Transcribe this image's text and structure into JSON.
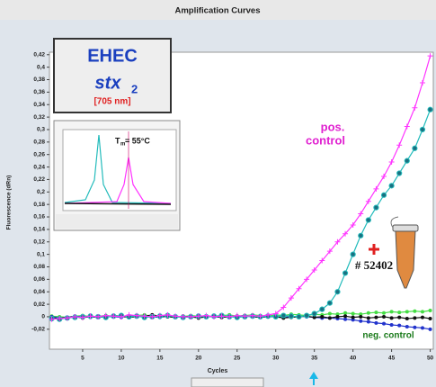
{
  "chart_data": {
    "type": "line",
    "title": "Amplification Curves",
    "x_label": "Cycles",
    "y_label": "Fluorescence (dRn)",
    "x": [
      1,
      2,
      3,
      4,
      5,
      6,
      7,
      8,
      9,
      10,
      11,
      12,
      13,
      14,
      15,
      16,
      17,
      18,
      19,
      20,
      21,
      22,
      23,
      24,
      25,
      26,
      27,
      28,
      29,
      30,
      31,
      32,
      33,
      34,
      35,
      36,
      37,
      38,
      39,
      40,
      41,
      42,
      43,
      44,
      45,
      46,
      47,
      48,
      49,
      50
    ],
    "xlim": [
      0.7,
      50.4
    ],
    "xticks": [
      5,
      10,
      15,
      20,
      25,
      30,
      35,
      40,
      45,
      50
    ],
    "ylim": [
      -0.052,
      0.424
    ],
    "yticks": [
      {
        "value": -0.02,
        "label": "-0,02"
      },
      {
        "value": 0,
        "label": "0"
      },
      {
        "value": 0.02,
        "label": "0,02"
      },
      {
        "value": 0.04,
        "label": "0,04"
      },
      {
        "value": 0.06,
        "label": "0,06"
      },
      {
        "value": 0.08,
        "label": "0,08"
      },
      {
        "value": 0.1,
        "label": "0,1"
      },
      {
        "value": 0.12,
        "label": "0,12"
      },
      {
        "value": 0.14,
        "label": "0,14"
      },
      {
        "value": 0.16,
        "label": "0,16"
      },
      {
        "value": 0.18,
        "label": "0,18"
      },
      {
        "value": 0.2,
        "label": "0,2"
      },
      {
        "value": 0.22,
        "label": "0,22"
      },
      {
        "value": 0.24,
        "label": "0,24"
      },
      {
        "value": 0.26,
        "label": "0,26"
      },
      {
        "value": 0.28,
        "label": "0,28"
      },
      {
        "value": 0.3,
        "label": "0,3"
      },
      {
        "value": 0.32,
        "label": "0,32"
      },
      {
        "value": 0.34,
        "label": "0,34"
      },
      {
        "value": 0.36,
        "label": "0,36"
      },
      {
        "value": 0.38,
        "label": "0,38"
      },
      {
        "value": 0.4,
        "label": "0,4"
      },
      {
        "value": 0.42,
        "label": "0,42"
      }
    ],
    "series": [
      {
        "color": "#ff33ff",
        "marker": "plus",
        "values": [
          -0.004,
          -0.003,
          -0.002,
          0,
          -0.001,
          0.001,
          0,
          0.002,
          0.001,
          0,
          0.003,
          0.002,
          0.001,
          0,
          0.002,
          0.003,
          0.001,
          0,
          0,
          0.001,
          0.002,
          0,
          0.001,
          0,
          0.002,
          0.001,
          0.002,
          0.001,
          0.003,
          0.005,
          0.015,
          0.03,
          0.045,
          0.06,
          0.075,
          0.09,
          0.105,
          0.12,
          0.133,
          0.147,
          0.165,
          0.185,
          0.205,
          0.225,
          0.248,
          0.275,
          0.305,
          0.335,
          0.375,
          0.418
        ]
      },
      {
        "color": "#22bbbb",
        "marker": "circle",
        "values": [
          -0.003,
          -0.004,
          -0.002,
          -0.001,
          0,
          0.001,
          0,
          -0.001,
          0.001,
          0.002,
          0,
          0.001,
          -0.001,
          0,
          0.001,
          0.002,
          0,
          -0.001,
          0,
          0.001,
          0,
          0.001,
          0.002,
          0,
          -0.001,
          0,
          0.001,
          0,
          0.001,
          0,
          0.002,
          0.001,
          0,
          0.002,
          0.005,
          0.012,
          0.022,
          0.04,
          0.07,
          0.1,
          0.13,
          0.155,
          0.175,
          0.195,
          0.21,
          0.23,
          0.25,
          0.27,
          0.3,
          0.332
        ]
      },
      {
        "color": "#111111",
        "marker": "dot",
        "values": [
          -0.002,
          -0.003,
          -0.001,
          0,
          -0.002,
          0.001,
          -0.001,
          0,
          0.002,
          0.001,
          -0.001,
          0,
          0.001,
          0.003,
          0.001,
          0,
          -0.001,
          0.001,
          0,
          -0.002,
          0,
          0.001,
          -0.001,
          0,
          0.001,
          0.002,
          0,
          -0.001,
          0.001,
          0,
          -0.002,
          -0.001,
          0,
          0.001,
          -0.001,
          0,
          -0.002,
          0,
          0.001,
          -0.001,
          0,
          -0.002,
          -0.001,
          0,
          -0.002,
          -0.001,
          -0.003,
          -0.002,
          -0.001,
          -0.003
        ]
      },
      {
        "color": "#2233cc",
        "marker": "dot",
        "values": [
          0,
          -0.002,
          -0.001,
          0.001,
          0,
          -0.001,
          0,
          0.001,
          0,
          -0.001,
          0.001,
          0.002,
          0,
          0,
          -0.001,
          0.001,
          0,
          0,
          -0.001,
          0,
          0.001,
          0,
          -0.001,
          0,
          0,
          0.001,
          0,
          -0.001,
          0,
          0,
          -0.001,
          0,
          0.001,
          0,
          -0.001,
          -0.002,
          -0.002,
          -0.003,
          -0.004,
          -0.005,
          -0.007,
          -0.008,
          -0.01,
          -0.011,
          -0.013,
          -0.014,
          -0.016,
          -0.017,
          -0.018,
          -0.02
        ]
      },
      {
        "color": "#44dd44",
        "marker": "dot",
        "values": [
          0.001,
          0,
          -0.001,
          0.001,
          0.002,
          0,
          0.001,
          0.002,
          0.001,
          0,
          0.001,
          0.002,
          0.003,
          0.001,
          0,
          0.002,
          0.001,
          0,
          0.002,
          0.001,
          0,
          0.001,
          0.002,
          0.003,
          0.001,
          0.002,
          0.003,
          0.002,
          0.001,
          0.003,
          0.002,
          0.004,
          0.003,
          0.002,
          0.004,
          0.003,
          0.005,
          0.004,
          0.006,
          0.005,
          0.004,
          0.006,
          0.007,
          0.006,
          0.008,
          0.007,
          0.008,
          0.009,
          0.008,
          0.01
        ]
      }
    ],
    "annotations": {
      "pos_control": "pos.",
      "pos_control_2": "control",
      "neg_control": "neg. control",
      "sample": "# 52402",
      "organism": "EHEC",
      "gene": "stx",
      "gene_sub": "2",
      "wavelength": "[705 nm]",
      "tm": "T",
      "tm_sub": "m",
      "tm_value": "= 55°C"
    }
  }
}
